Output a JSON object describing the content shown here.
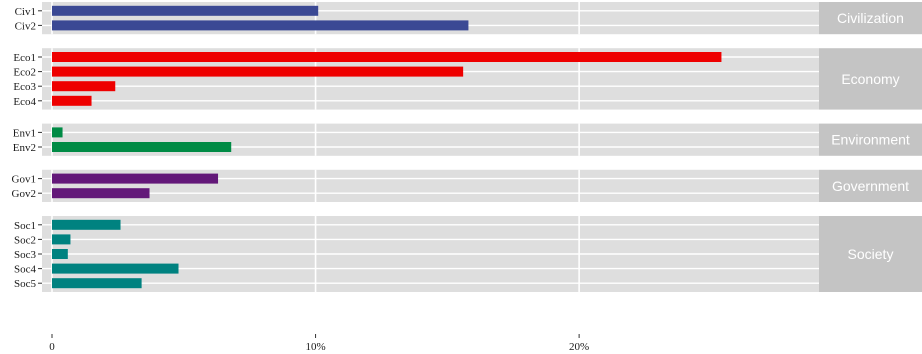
{
  "chart_data": {
    "type": "bar",
    "orientation": "horizontal",
    "title": "",
    "xlabel": "",
    "ylabel": "",
    "xlim": [
      0,
      0.295
    ],
    "xticks": [
      {
        "value": 0,
        "label": "0"
      },
      {
        "value": 0.1,
        "label": "10%"
      },
      {
        "value": 0.2,
        "label": "20%"
      }
    ],
    "grid": true,
    "facets": [
      {
        "name": "Civilization",
        "color": "#3b4994",
        "bars": [
          {
            "label": "Civ1",
            "value": 0.101
          },
          {
            "label": "Civ2",
            "value": 0.158
          }
        ]
      },
      {
        "name": "Economy",
        "color": "#ee0000",
        "bars": [
          {
            "label": "Eco1",
            "value": 0.254
          },
          {
            "label": "Eco2",
            "value": 0.156
          },
          {
            "label": "Eco3",
            "value": 0.024
          },
          {
            "label": "Eco4",
            "value": 0.015
          }
        ]
      },
      {
        "name": "Environment",
        "color": "#008b45",
        "bars": [
          {
            "label": "Env1",
            "value": 0.004
          },
          {
            "label": "Env2",
            "value": 0.068
          }
        ]
      },
      {
        "name": "Government",
        "color": "#631879",
        "bars": [
          {
            "label": "Gov1",
            "value": 0.063
          },
          {
            "label": "Gov2",
            "value": 0.037
          }
        ]
      },
      {
        "name": "Society",
        "color": "#008280",
        "bars": [
          {
            "label": "Soc1",
            "value": 0.026
          },
          {
            "label": "Soc2",
            "value": 0.007
          },
          {
            "label": "Soc3",
            "value": 0.006
          },
          {
            "label": "Soc4",
            "value": 0.048
          },
          {
            "label": "Soc5",
            "value": 0.034
          }
        ]
      }
    ]
  }
}
